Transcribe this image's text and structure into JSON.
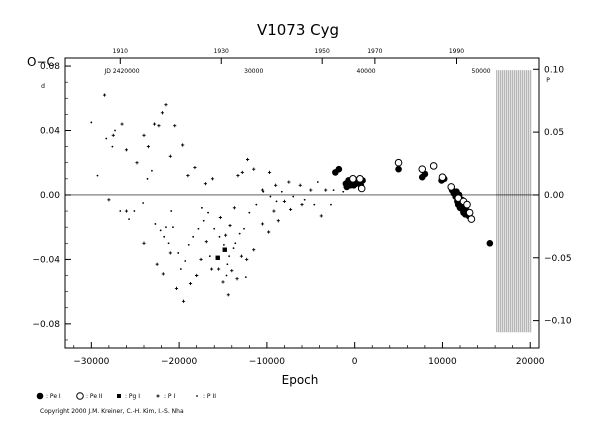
{
  "chart_data": {
    "type": "scatter",
    "title": "V1073  Cyg",
    "ylabel": "O−C",
    "ylabel_unit": "d",
    "xlabel": "Epoch",
    "xlim": [
      -33000,
      21000
    ],
    "ylim": [
      -0.095,
      0.085
    ],
    "x_ticks": [
      -30000,
      -20000,
      -10000,
      0,
      10000,
      20000
    ],
    "x_tick_labels": [
      "−30000",
      "−20000",
      "−10000",
      "0",
      "10000",
      "20000"
    ],
    "y_ticks": [
      0.08,
      0.04,
      0.0,
      -0.04,
      -0.08
    ],
    "y_tick_labels": [
      "0.08",
      "0.04",
      "0.00",
      "−0.04",
      "−0.08"
    ],
    "right_y_unit": "P",
    "right_y_ticks": [
      0.1,
      0.05,
      0.0,
      -0.05,
      -0.1
    ],
    "right_y_tick_labels": [
      "0.10",
      "0.05",
      "0.00",
      "−0.05",
      "−0.10"
    ],
    "top_year_ticks": [
      {
        "epoch": -26700,
        "label": "1910"
      },
      {
        "epoch": -15200,
        "label": "1930"
      },
      {
        "epoch": -3700,
        "label": "1950"
      },
      {
        "epoch": 2300,
        "label": "1970"
      },
      {
        "epoch": 11600,
        "label": "1990"
      }
    ],
    "jd_ticks": [
      {
        "epoch": -26500,
        "label": "JD 2420000"
      },
      {
        "epoch": -11500,
        "label": "30000"
      },
      {
        "epoch": 1300,
        "label": "40000"
      },
      {
        "epoch": 14400,
        "label": "50000"
      }
    ],
    "future_region_start": 16200,
    "legend": [
      "Pe I",
      "Pe II",
      "Pg I",
      "P I",
      "P II"
    ],
    "series": [
      {
        "name": "Pe I",
        "marker": "filled-circle",
        "points": [
          [
            -2200,
            0.014
          ],
          [
            -1800,
            0.016
          ],
          [
            -1000,
            0.007
          ],
          [
            -900,
            0.005
          ],
          [
            -700,
            0.009
          ],
          [
            -500,
            0.006
          ],
          [
            -300,
            0.008
          ],
          [
            -100,
            0.006
          ],
          [
            100,
            0.007
          ],
          [
            300,
            0.009
          ],
          [
            500,
            0.008
          ],
          [
            700,
            0.006
          ],
          [
            900,
            0.009
          ],
          [
            5000,
            0.016
          ],
          [
            7700,
            0.011
          ],
          [
            8000,
            0.013
          ],
          [
            9900,
            0.009
          ],
          [
            10200,
            0.01
          ],
          [
            11100,
            0.003
          ],
          [
            11300,
            0.001
          ],
          [
            11500,
            -0.001
          ],
          [
            11600,
            0.002
          ],
          [
            11700,
            -0.004
          ],
          [
            11800,
            -0.006
          ],
          [
            11900,
            0.0
          ],
          [
            12000,
            -0.008
          ],
          [
            12100,
            -0.006
          ],
          [
            12200,
            -0.003
          ],
          [
            12300,
            -0.009
          ],
          [
            12400,
            -0.011
          ],
          [
            12500,
            -0.007
          ],
          [
            12600,
            -0.012
          ],
          [
            12800,
            -0.01
          ],
          [
            13000,
            -0.013
          ],
          [
            15400,
            -0.03
          ]
        ]
      },
      {
        "name": "Pe II",
        "marker": "open-circle",
        "points": [
          [
            -200,
            0.01
          ],
          [
            600,
            0.01
          ],
          [
            800,
            0.004
          ],
          [
            5000,
            0.02
          ],
          [
            7700,
            0.016
          ],
          [
            9000,
            0.018
          ],
          [
            10000,
            0.011
          ],
          [
            11000,
            0.005
          ],
          [
            11800,
            -0.002
          ],
          [
            12400,
            -0.004
          ],
          [
            12800,
            -0.006
          ],
          [
            13100,
            -0.011
          ],
          [
            13300,
            -0.015
          ]
        ]
      },
      {
        "name": "Pg I",
        "marker": "filled-square",
        "points": [
          [
            -15600,
            -0.039
          ],
          [
            -14800,
            -0.034
          ]
        ]
      },
      {
        "name": "P I",
        "marker": "plus",
        "points": [
          [
            -28500,
            0.062
          ],
          [
            -27500,
            0.037
          ],
          [
            -26500,
            0.044
          ],
          [
            -26000,
            0.028
          ],
          [
            -24800,
            0.02
          ],
          [
            -24000,
            0.037
          ],
          [
            -23500,
            0.03
          ],
          [
            -22800,
            0.044
          ],
          [
            -22300,
            0.043
          ],
          [
            -21900,
            0.051
          ],
          [
            -21500,
            0.056
          ],
          [
            -21000,
            0.024
          ],
          [
            -20500,
            0.043
          ],
          [
            -19600,
            0.031
          ],
          [
            -19000,
            0.012
          ],
          [
            -18200,
            0.017
          ],
          [
            -17000,
            0.007
          ],
          [
            -16200,
            0.01
          ],
          [
            -15300,
            -0.014
          ],
          [
            -14700,
            -0.025
          ],
          [
            -14200,
            -0.019
          ],
          [
            -13700,
            -0.008
          ],
          [
            -13300,
            0.012
          ],
          [
            -12800,
            0.014
          ],
          [
            -12200,
            0.022
          ],
          [
            -11500,
            0.016
          ],
          [
            -10500,
            0.003
          ],
          [
            -9700,
            0.014
          ],
          [
            -9000,
            0.006
          ],
          [
            -7500,
            0.008
          ],
          [
            -6200,
            0.006
          ],
          [
            -5000,
            0.003
          ],
          [
            -28000,
            -0.003
          ],
          [
            -26000,
            -0.01
          ],
          [
            -24000,
            -0.03
          ],
          [
            -22500,
            -0.043
          ],
          [
            -21800,
            -0.049
          ],
          [
            -21000,
            -0.036
          ],
          [
            -20300,
            -0.058
          ],
          [
            -19500,
            -0.066
          ],
          [
            -18700,
            -0.055
          ],
          [
            -18000,
            -0.05
          ],
          [
            -17500,
            -0.04
          ],
          [
            -16900,
            -0.029
          ],
          [
            -16300,
            -0.046
          ],
          [
            -15500,
            -0.046
          ],
          [
            -15000,
            -0.054
          ],
          [
            -14400,
            -0.062
          ],
          [
            -14000,
            -0.047
          ],
          [
            -13400,
            -0.052
          ],
          [
            -12900,
            -0.038
          ],
          [
            -12300,
            -0.04
          ],
          [
            -11500,
            -0.034
          ],
          [
            -10500,
            -0.018
          ],
          [
            -9800,
            -0.023
          ],
          [
            -9200,
            -0.01
          ],
          [
            -8700,
            -0.016
          ],
          [
            -8000,
            -0.004
          ],
          [
            -7300,
            -0.009
          ],
          [
            -6000,
            -0.006
          ],
          [
            -3800,
            -0.013
          ],
          [
            -3300,
            0.003
          ]
        ]
      },
      {
        "name": "P II",
        "marker": "dot",
        "points": [
          [
            -30000,
            0.045
          ],
          [
            -29300,
            0.012
          ],
          [
            -28300,
            0.035
          ],
          [
            -27600,
            0.03
          ],
          [
            -27300,
            0.04
          ],
          [
            -26700,
            -0.01
          ],
          [
            -25700,
            -0.015
          ],
          [
            -25100,
            -0.01
          ],
          [
            -24100,
            -0.005
          ],
          [
            -23600,
            0.01
          ],
          [
            -23100,
            0.015
          ],
          [
            -22700,
            -0.018
          ],
          [
            -22100,
            -0.022
          ],
          [
            -21700,
            -0.026
          ],
          [
            -21200,
            -0.03
          ],
          [
            -20700,
            -0.02
          ],
          [
            -20100,
            -0.036
          ],
          [
            -19800,
            -0.046
          ],
          [
            -19300,
            -0.041
          ],
          [
            -18900,
            -0.031
          ],
          [
            -18400,
            -0.026
          ],
          [
            -17800,
            -0.021
          ],
          [
            -17200,
            -0.016
          ],
          [
            -16700,
            -0.011
          ],
          [
            -16000,
            -0.021
          ],
          [
            -15400,
            -0.026
          ],
          [
            -14900,
            -0.031
          ],
          [
            -14500,
            -0.043
          ],
          [
            -14300,
            -0.038
          ],
          [
            -13800,
            -0.033
          ],
          [
            -13100,
            -0.024
          ],
          [
            -12600,
            -0.021
          ],
          [
            -12000,
            -0.011
          ],
          [
            -11200,
            -0.006
          ],
          [
            -10400,
            0.002
          ],
          [
            -9600,
            -0.001
          ],
          [
            -8900,
            -0.004
          ],
          [
            -8300,
            0.002
          ],
          [
            -7000,
            -0.001
          ],
          [
            -5700,
            -0.003
          ],
          [
            -4600,
            -0.006
          ],
          [
            -4200,
            0.008
          ],
          [
            -2700,
            -0.006
          ],
          [
            -2400,
            0.003
          ],
          [
            -1300,
            0.002
          ],
          [
            -21500,
            -0.02
          ],
          [
            -20900,
            -0.01
          ],
          [
            -17400,
            -0.008
          ],
          [
            -16500,
            -0.038
          ],
          [
            -14600,
            -0.05
          ],
          [
            -13600,
            -0.03
          ],
          [
            -12400,
            -0.051
          ]
        ]
      }
    ]
  },
  "copyright": "Copyright 2000 J.M. Kreiner, C.-H. Kim, I.-S. Nha"
}
